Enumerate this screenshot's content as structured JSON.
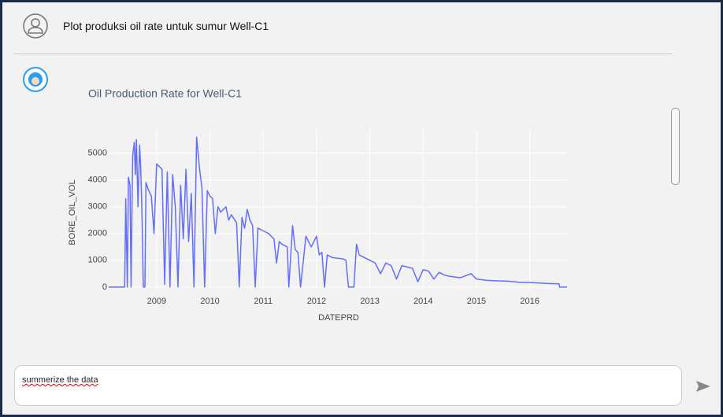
{
  "header": {
    "message": "Plot produksi oil rate untuk sumur Well-C1"
  },
  "chart_data": {
    "type": "line",
    "title": "Oil Production Rate for Well-C1",
    "x_label": "DATEPRD",
    "y_label": "BORE_OIL_VOL",
    "color": "#636efa",
    "grid": true,
    "x": [
      2008.1,
      2008.4,
      2008.42,
      2008.45,
      2008.47,
      2008.5,
      2008.52,
      2008.55,
      2008.58,
      2008.6,
      2008.62,
      2008.65,
      2008.68,
      2008.7,
      2008.72,
      2008.75,
      2008.78,
      2008.8,
      2008.85,
      2008.9,
      2008.95,
      2009.0,
      2009.05,
      2009.1,
      2009.15,
      2009.2,
      2009.25,
      2009.3,
      2009.35,
      2009.4,
      2009.45,
      2009.5,
      2009.55,
      2009.6,
      2009.65,
      2009.7,
      2009.75,
      2009.8,
      2009.85,
      2009.9,
      2009.95,
      2010.0,
      2010.05,
      2010.1,
      2010.15,
      2010.2,
      2010.3,
      2010.35,
      2010.4,
      2010.5,
      2010.55,
      2010.6,
      2010.65,
      2010.7,
      2010.75,
      2010.8,
      2010.85,
      2010.9,
      2011.0,
      2011.1,
      2011.2,
      2011.25,
      2011.3,
      2011.35,
      2011.45,
      2011.48,
      2011.55,
      2011.6,
      2011.65,
      2011.7,
      2011.8,
      2011.9,
      2012.0,
      2012.05,
      2012.1,
      2012.15,
      2012.2,
      2012.3,
      2012.5,
      2012.55,
      2012.6,
      2012.7,
      2012.75,
      2012.8,
      2012.9,
      2013.0,
      2013.1,
      2013.2,
      2013.3,
      2013.4,
      2013.5,
      2013.6,
      2013.7,
      2013.8,
      2013.9,
      2014.0,
      2014.1,
      2014.2,
      2014.3,
      2014.4,
      2014.5,
      2014.7,
      2014.9,
      2015.0,
      2015.2,
      2015.4,
      2015.6,
      2015.8,
      2016.0,
      2016.2,
      2016.4,
      2016.55,
      2016.56,
      2016.7
    ],
    "values": [
      0,
      0,
      3300,
      0,
      4100,
      3800,
      0,
      4900,
      5400,
      4200,
      5500,
      3000,
      5300,
      4500,
      3200,
      0,
      0,
      3900,
      3600,
      3400,
      2000,
      4600,
      4500,
      4400,
      100,
      4300,
      0,
      4200,
      3000,
      0,
      3800,
      1800,
      4400,
      1700,
      3500,
      0,
      5600,
      4500,
      3700,
      0,
      3600,
      3400,
      3300,
      2000,
      3000,
      2800,
      3000,
      2500,
      2700,
      2400,
      0,
      2600,
      2200,
      2900,
      2500,
      2300,
      0,
      2200,
      2100,
      2000,
      1800,
      900,
      1700,
      1600,
      1500,
      0,
      2300,
      1400,
      1300,
      0,
      1900,
      1500,
      1900,
      1200,
      1300,
      0,
      1200,
      1100,
      1050,
      1000,
      0,
      0,
      1600,
      1200,
      1100,
      1000,
      900,
      500,
      900,
      800,
      300,
      800,
      750,
      700,
      200,
      650,
      600,
      300,
      550,
      450,
      400,
      350,
      500,
      300,
      250,
      230,
      220,
      180,
      170,
      150,
      130,
      120,
      0,
      0
    ],
    "xlim": [
      2008.1,
      2016.7
    ],
    "xticks": [
      2009,
      2010,
      2011,
      2012,
      2013,
      2014,
      2015,
      2016
    ],
    "ylim": [
      -150,
      5900
    ],
    "yticks": [
      0,
      1000,
      2000,
      3000,
      4000,
      5000
    ]
  },
  "input": {
    "text": "summerize the data"
  }
}
